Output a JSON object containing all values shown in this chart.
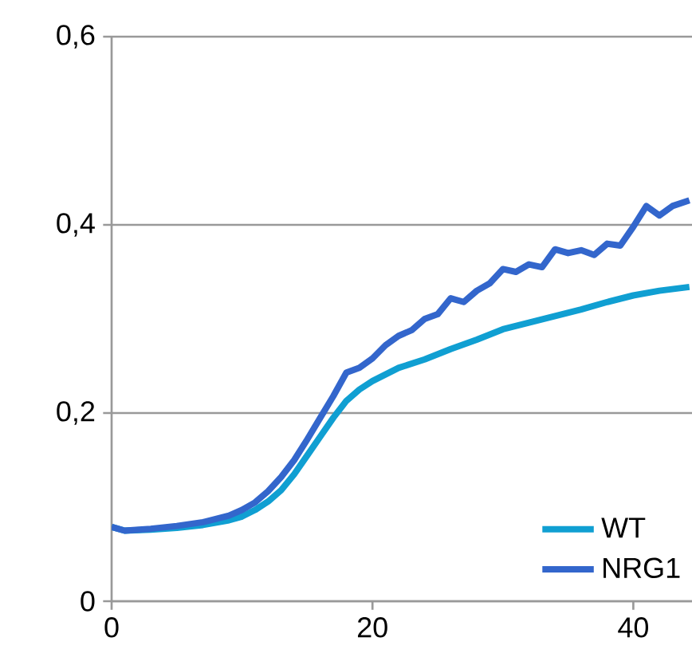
{
  "chart_data": {
    "type": "line",
    "xlim": [
      0,
      44.5
    ],
    "ylim": [
      0,
      0.6
    ],
    "xticks": [
      0,
      20,
      40
    ],
    "yticks": [
      {
        "value": 0,
        "label": "0"
      },
      {
        "value": 0.2,
        "label": "0,2"
      },
      {
        "value": 0.4,
        "label": "0,4"
      },
      {
        "value": 0.6,
        "label": "0,6"
      }
    ],
    "grid": "y",
    "legend": "bottom right",
    "marker": "none",
    "line_style": "solid",
    "series": [
      {
        "name": "WT",
        "color": "#109fd2",
        "x": [
          0,
          1,
          3,
          5,
          7,
          9,
          10,
          11,
          12,
          13,
          14,
          15,
          16,
          17,
          18,
          19,
          20,
          22,
          24,
          26,
          28,
          30,
          32,
          34,
          36,
          38,
          40,
          42,
          44.3
        ],
        "values": [
          0.079,
          0.075,
          0.076,
          0.078,
          0.081,
          0.086,
          0.09,
          0.097,
          0.106,
          0.118,
          0.135,
          0.155,
          0.175,
          0.195,
          0.213,
          0.225,
          0.234,
          0.248,
          0.257,
          0.268,
          0.278,
          0.289,
          0.296,
          0.303,
          0.31,
          0.318,
          0.325,
          0.33,
          0.334
        ]
      },
      {
        "name": "NRG1",
        "color": "#3366cc",
        "x": [
          0,
          1,
          3,
          5,
          7,
          9,
          10,
          11,
          12,
          13,
          14,
          15,
          16,
          17,
          18,
          19,
          20,
          21,
          22,
          23,
          24,
          25,
          26,
          27,
          28,
          29,
          30,
          31,
          32,
          33,
          34,
          35,
          36,
          37,
          38,
          39,
          40,
          41,
          42,
          43,
          44.3
        ],
        "values": [
          0.079,
          0.075,
          0.077,
          0.08,
          0.084,
          0.091,
          0.097,
          0.105,
          0.117,
          0.132,
          0.15,
          0.172,
          0.195,
          0.218,
          0.243,
          0.248,
          0.258,
          0.272,
          0.282,
          0.288,
          0.3,
          0.305,
          0.322,
          0.318,
          0.33,
          0.338,
          0.353,
          0.35,
          0.358,
          0.355,
          0.374,
          0.37,
          0.373,
          0.368,
          0.38,
          0.378,
          0.398,
          0.42,
          0.41,
          0.42,
          0.426
        ]
      }
    ]
  }
}
